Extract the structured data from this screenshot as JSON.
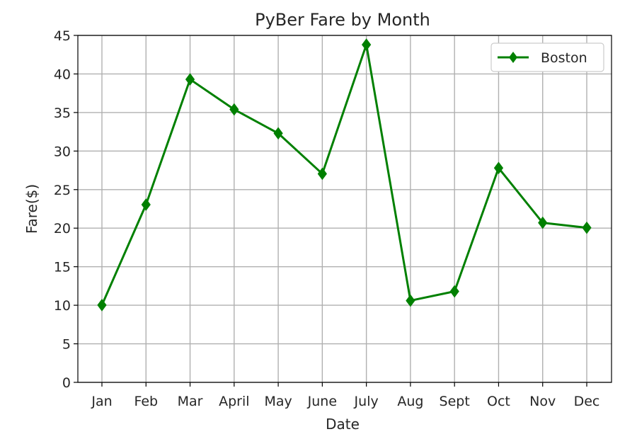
{
  "chart_data": {
    "type": "line",
    "title": "PyBer Fare by Month",
    "xlabel": "Date",
    "ylabel": "Fare($)",
    "categories": [
      "Jan",
      "Feb",
      "Mar",
      "April",
      "May",
      "June",
      "July",
      "Aug",
      "Sept",
      "Oct",
      "Nov",
      "Dec"
    ],
    "series": [
      {
        "name": "Boston",
        "values": [
          10.02,
          23.05,
          39.3,
          35.4,
          32.3,
          27.05,
          43.8,
          10.6,
          11.8,
          27.8,
          20.7,
          20.05
        ],
        "color": "#008000",
        "marker": "diamond"
      }
    ],
    "ylim": [
      0,
      45
    ],
    "yticks": [
      0,
      5,
      10,
      15,
      20,
      25,
      30,
      35,
      40,
      45
    ],
    "grid": true,
    "legend_position": "top-right"
  }
}
